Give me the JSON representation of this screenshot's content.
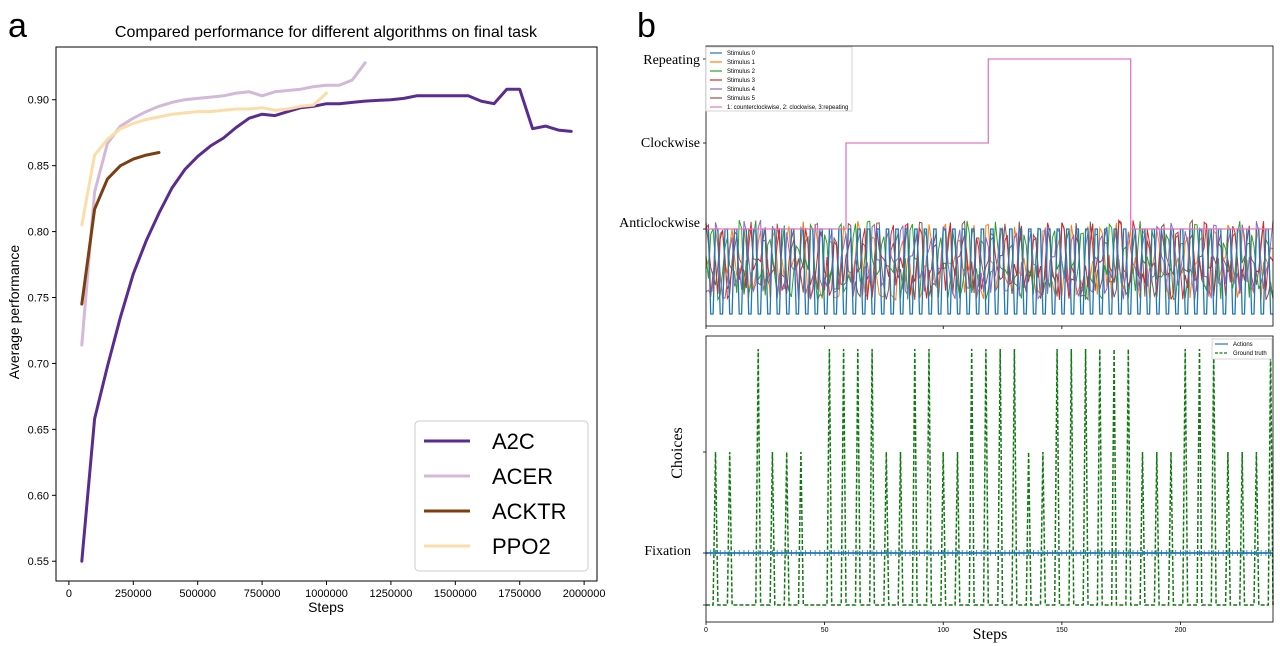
{
  "panel_a_label": "a",
  "panel_b_label": "b",
  "chart_data": [
    {
      "type": "line",
      "title": "Compared performance for different algorithms on final task",
      "xlabel": "Steps",
      "ylabel": "Average performance",
      "xlim": [
        -50000,
        2050000
      ],
      "ylim": [
        0.535,
        0.94
      ],
      "xticks": [
        0,
        250000,
        500000,
        750000,
        1000000,
        1250000,
        1500000,
        1750000,
        2000000
      ],
      "yticks": [
        0.55,
        0.6,
        0.65,
        0.7,
        0.75,
        0.8,
        0.85,
        0.9
      ],
      "xtick_labels": [
        "0",
        "250000",
        "500000",
        "750000",
        "1000000",
        "1250000",
        "1500000",
        "1750000",
        "2000000"
      ],
      "ytick_labels": [
        "0.55",
        "0.60",
        "0.65",
        "0.70",
        "0.75",
        "0.80",
        "0.85",
        "0.90"
      ],
      "legend_position": "bottom-right",
      "grid": false,
      "series": [
        {
          "name": "A2C",
          "color": "#5b2c8f",
          "x": [
            50000,
            100000,
            150000,
            200000,
            250000,
            300000,
            350000,
            400000,
            450000,
            500000,
            550000,
            600000,
            650000,
            700000,
            750000,
            800000,
            850000,
            900000,
            950000,
            1000000,
            1050000,
            1100000,
            1150000,
            1200000,
            1250000,
            1300000,
            1350000,
            1400000,
            1450000,
            1500000,
            1550000,
            1600000,
            1650000,
            1700000,
            1750000,
            1800000,
            1850000,
            1900000,
            1950000
          ],
          "y": [
            0.55,
            0.658,
            0.698,
            0.735,
            0.768,
            0.793,
            0.814,
            0.833,
            0.847,
            0.857,
            0.865,
            0.871,
            0.879,
            0.886,
            0.889,
            0.888,
            0.891,
            0.894,
            0.895,
            0.897,
            0.897,
            0.898,
            0.899,
            0.8995,
            0.9,
            0.901,
            0.903,
            0.903,
            0.903,
            0.903,
            0.903,
            0.899,
            0.897,
            0.908,
            0.908,
            0.878,
            0.88,
            0.877,
            0.876
          ]
        },
        {
          "name": "ACER",
          "color": "#d4b8d8",
          "x": [
            50000,
            100000,
            150000,
            200000,
            250000,
            300000,
            350000,
            400000,
            450000,
            500000,
            550000,
            600000,
            650000,
            700000,
            750000,
            800000,
            850000,
            900000,
            950000,
            1000000,
            1050000,
            1100000,
            1150000
          ],
          "y": [
            0.714,
            0.83,
            0.867,
            0.88,
            0.886,
            0.891,
            0.895,
            0.898,
            0.9,
            0.901,
            0.902,
            0.903,
            0.905,
            0.906,
            0.903,
            0.906,
            0.907,
            0.908,
            0.91,
            0.911,
            0.911,
            0.915,
            0.928
          ]
        },
        {
          "name": "ACKTR",
          "color": "#7b3f12",
          "x": [
            50000,
            100000,
            150000,
            200000,
            250000,
            300000,
            350000
          ],
          "y": [
            0.745,
            0.817,
            0.84,
            0.85,
            0.855,
            0.858,
            0.86
          ]
        },
        {
          "name": "PPO2",
          "color": "#fcdca8",
          "x": [
            50000,
            100000,
            150000,
            200000,
            250000,
            300000,
            350000,
            400000,
            450000,
            500000,
            550000,
            600000,
            650000,
            700000,
            750000,
            800000,
            850000,
            900000,
            950000,
            1000000
          ],
          "y": [
            0.805,
            0.858,
            0.87,
            0.878,
            0.882,
            0.885,
            0.887,
            0.889,
            0.89,
            0.891,
            0.891,
            0.892,
            0.893,
            0.893,
            0.894,
            0.892,
            0.893,
            0.895,
            0.896,
            0.905
          ]
        }
      ]
    },
    {
      "type": "line",
      "title": "",
      "xlim": [
        0,
        239
      ],
      "category_labels": [
        "Repeating",
        "Clockwise",
        "Anticlockwise"
      ],
      "legend_position": "top-left",
      "series": [
        {
          "name": "Stimulus 0",
          "color": "#1f77b4"
        },
        {
          "name": "Stimulus 1",
          "color": "#ff7f0e"
        },
        {
          "name": "Stimulus 2",
          "color": "#2ca02c"
        },
        {
          "name": "Stimulus 3",
          "color": "#d62728"
        },
        {
          "name": "Stimulus 4",
          "color": "#9467bd"
        },
        {
          "name": "Stimulus 5",
          "color": "#8c564b"
        },
        {
          "name": "1: counterclockwise, 2: clockwise, 3:repeating",
          "color": "#e377c2",
          "segments": [
            {
              "x_start": 0,
              "x_end": 59,
              "y": 1
            },
            {
              "x_start": 59,
              "x_end": 119,
              "y": 2
            },
            {
              "x_start": 119,
              "x_end": 179,
              "y": 3
            },
            {
              "x_start": 179,
              "x_end": 239,
              "y": 1
            }
          ]
        }
      ]
    },
    {
      "type": "line",
      "xlabel": "Steps",
      "ylabel": "Choices",
      "xlim": [
        0,
        239
      ],
      "xticks": [
        0,
        50,
        100,
        150,
        200
      ],
      "xtick_labels": [
        "0",
        "50",
        "100",
        "150",
        "200"
      ],
      "category_labels": [
        "Fixation"
      ],
      "legend_position": "top-right",
      "series": [
        {
          "name": "Actions",
          "color": "#1f77b4",
          "style": "solid-with-markers",
          "constant_level": "Fixation"
        },
        {
          "name": "Ground truth",
          "color": "#107a10",
          "style": "dashed",
          "spike_positions": [
            4,
            10,
            22,
            28,
            34,
            40,
            52,
            58,
            64,
            70,
            76,
            82,
            88,
            94,
            100,
            106,
            112,
            118,
            124,
            130,
            136,
            142,
            148,
            154,
            160,
            166,
            172,
            178,
            184,
            190,
            196,
            202,
            208,
            214,
            220,
            226,
            232,
            238
          ],
          "spike_heights": [
            2,
            2,
            3,
            2,
            2,
            2,
            3,
            3,
            3,
            3,
            2,
            2,
            3,
            3,
            2,
            2,
            3,
            3,
            3,
            3,
            2,
            2,
            3,
            3,
            3,
            3,
            3,
            3,
            2,
            2,
            2,
            3,
            3,
            3,
            2,
            2,
            2,
            3
          ]
        }
      ]
    }
  ]
}
